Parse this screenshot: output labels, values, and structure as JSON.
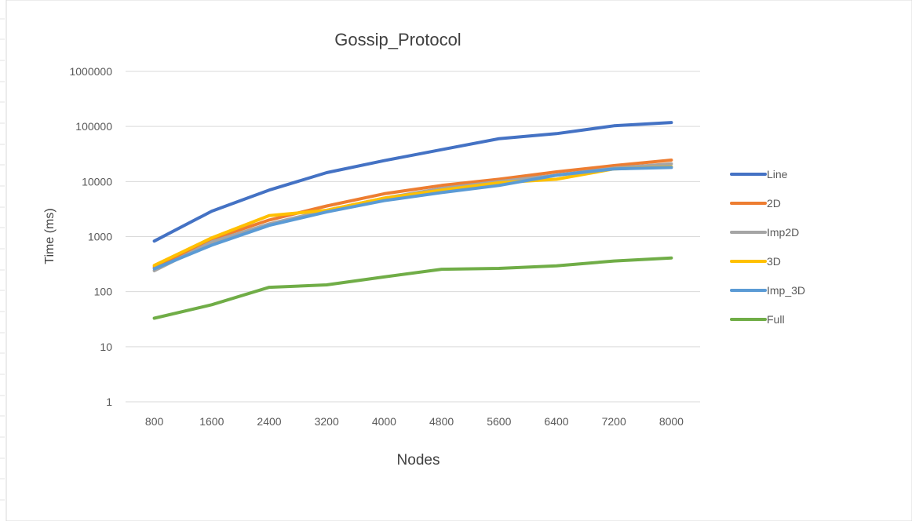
{
  "chart_data": {
    "type": "line",
    "title": "Gossip_Protocol",
    "xlabel": "Nodes",
    "ylabel": "Time (ms)",
    "yscale": "log",
    "ylim": [
      1,
      1000000
    ],
    "yticks": [
      "1",
      "10",
      "100",
      "1000",
      "10000",
      "100000",
      "1000000"
    ],
    "categories": [
      "800",
      "1600",
      "2400",
      "3200",
      "4000",
      "4800",
      "5600",
      "6400",
      "7200",
      "8000"
    ],
    "grid": "horizontal",
    "legend_position": "right",
    "series": [
      {
        "name": "Line",
        "color": "#4472C4",
        "values": [
          830,
          2900,
          7000,
          14500,
          24000,
          38000,
          60000,
          74000,
          103000,
          118000
        ]
      },
      {
        "name": "2D",
        "color": "#ED7D31",
        "values": [
          280,
          900,
          2000,
          3600,
          6000,
          8500,
          11000,
          15000,
          19500,
          24500
        ]
      },
      {
        "name": "Imp2D",
        "color": "#A5A5A5",
        "values": [
          240,
          800,
          1700,
          3000,
          5000,
          7500,
          10000,
          13000,
          17500,
          21000
        ]
      },
      {
        "name": "3D",
        "color": "#FFC000",
        "values": [
          300,
          950,
          2400,
          3000,
          5000,
          7000,
          9500,
          11000,
          17000,
          18500
        ]
      },
      {
        "name": "Imp_3D",
        "color": "#5B9BD5",
        "values": [
          260,
          700,
          1600,
          2800,
          4500,
          6300,
          8500,
          13000,
          17000,
          18000
        ]
      },
      {
        "name": "Full",
        "color": "#70AD47",
        "values": [
          33,
          58,
          120,
          133,
          185,
          255,
          265,
          295,
          360,
          410
        ]
      }
    ]
  }
}
